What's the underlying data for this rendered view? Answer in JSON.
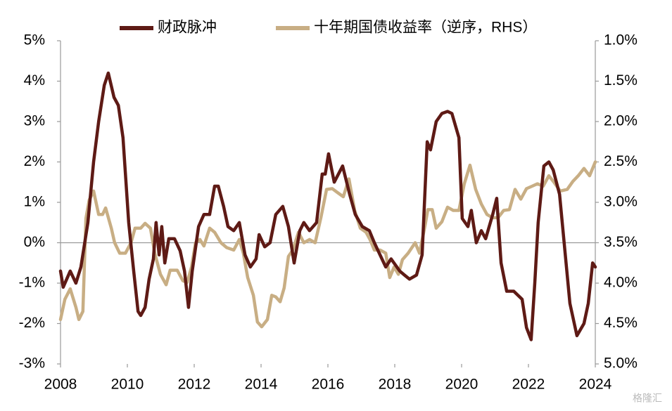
{
  "chart_data": {
    "type": "line",
    "xlim": [
      2008,
      2024
    ],
    "xticks": [
      2008,
      2010,
      2012,
      2014,
      2016,
      2018,
      2020,
      2022,
      2024
    ],
    "ylim": [
      -3,
      5
    ],
    "yticks": [
      {
        "value": -3,
        "label": "-3%"
      },
      {
        "value": -2,
        "label": "-2%"
      },
      {
        "value": -1,
        "label": "-1%"
      },
      {
        "value": 0,
        "label": "0%"
      },
      {
        "value": 1,
        "label": "1%"
      },
      {
        "value": 2,
        "label": "2%"
      },
      {
        "value": 3,
        "label": "3%"
      },
      {
        "value": 4,
        "label": "4%"
      },
      {
        "value": 5,
        "label": "5%"
      }
    ],
    "y2lim": [
      5.0,
      1.0
    ],
    "y2ticks": [
      {
        "value": 1.0,
        "label": "1.0%"
      },
      {
        "value": 1.5,
        "label": "1.5%"
      },
      {
        "value": 2.0,
        "label": "2.0%"
      },
      {
        "value": 2.5,
        "label": "2.5%"
      },
      {
        "value": 3.0,
        "label": "3.0%"
      },
      {
        "value": 3.5,
        "label": "3.5%"
      },
      {
        "value": 4.0,
        "label": "4.0%"
      },
      {
        "value": 4.5,
        "label": "4.5%"
      },
      {
        "value": 5.0,
        "label": "5.0%"
      }
    ],
    "y2_inverted": true,
    "zero_line": true,
    "legend": "top",
    "watermark": "格隆汇",
    "series": [
      {
        "name": "财政脉冲",
        "color": "#5e1a15",
        "x": [
          2008.0,
          2008.08,
          2008.29,
          2008.46,
          2008.61,
          2008.82,
          2008.99,
          2009.14,
          2009.31,
          2009.43,
          2009.6,
          2009.73,
          2009.87,
          2010.04,
          2010.19,
          2010.32,
          2010.4,
          2010.53,
          2010.65,
          2010.78,
          2010.86,
          2010.95,
          2011.03,
          2011.12,
          2011.24,
          2011.41,
          2011.58,
          2011.71,
          2011.83,
          2011.94,
          2012.13,
          2012.29,
          2012.46,
          2012.61,
          2012.72,
          2012.88,
          2013.01,
          2013.18,
          2013.35,
          2013.52,
          2013.68,
          2013.85,
          2013.94,
          2014.11,
          2014.27,
          2014.44,
          2014.65,
          2014.82,
          2014.99,
          2015.16,
          2015.28,
          2015.45,
          2015.66,
          2015.83,
          2015.92,
          2016.02,
          2016.19,
          2016.44,
          2016.65,
          2016.82,
          2017.03,
          2017.24,
          2017.39,
          2017.56,
          2017.73,
          2017.89,
          2018.15,
          2018.29,
          2018.44,
          2018.65,
          2018.82,
          2018.97,
          2019.07,
          2019.24,
          2019.41,
          2019.58,
          2019.71,
          2019.92,
          2020.02,
          2020.19,
          2020.29,
          2020.44,
          2020.59,
          2020.72,
          2020.93,
          2021.05,
          2021.18,
          2021.35,
          2021.56,
          2021.81,
          2021.94,
          2022.08,
          2022.19,
          2022.29,
          2022.46,
          2022.61,
          2022.74,
          2022.93,
          2023.24,
          2023.45,
          2023.66,
          2023.79,
          2023.92,
          2024.0
        ],
        "values": [
          -0.7,
          -1.1,
          -0.7,
          -1.0,
          -0.6,
          0.5,
          2.0,
          3.0,
          3.9,
          4.2,
          3.6,
          3.4,
          2.6,
          0.5,
          -0.7,
          -1.7,
          -1.8,
          -1.6,
          -0.9,
          -0.4,
          0.5,
          -0.3,
          0.4,
          -0.5,
          0.1,
          0.1,
          -0.2,
          -0.7,
          -1.6,
          -0.7,
          0.4,
          0.7,
          0.7,
          1.4,
          1.4,
          0.9,
          0.4,
          0.3,
          0.5,
          -0.3,
          -0.6,
          -0.4,
          0.2,
          -0.1,
          0.0,
          0.7,
          0.9,
          0.4,
          -0.5,
          0.3,
          0.5,
          0.3,
          0.5,
          1.7,
          1.7,
          2.2,
          1.5,
          1.9,
          1.2,
          0.7,
          0.4,
          0.3,
          0.0,
          -0.3,
          -0.6,
          -0.4,
          -0.7,
          -0.8,
          -0.9,
          -0.8,
          -0.3,
          2.5,
          2.3,
          3.0,
          3.2,
          3.25,
          3.2,
          2.6,
          0.6,
          0.4,
          0.8,
          0.0,
          0.3,
          0.1,
          0.7,
          1.1,
          -0.5,
          -1.2,
          -1.2,
          -1.4,
          -2.1,
          -2.4,
          -1.0,
          0.5,
          1.9,
          2.0,
          1.8,
          1.2,
          -1.5,
          -2.3,
          -2.0,
          -1.5,
          -0.5,
          -0.6
        ]
      },
      {
        "name": "十年期国债收益率（逆序，RHS）",
        "color": "#c8ae84",
        "axis": "y2",
        "x": [
          2008.0,
          2008.13,
          2008.29,
          2008.46,
          2008.55,
          2008.67,
          2008.76,
          2008.86,
          2008.99,
          2009.14,
          2009.26,
          2009.35,
          2009.52,
          2009.62,
          2009.77,
          2009.94,
          2010.11,
          2010.23,
          2010.4,
          2010.53,
          2010.69,
          2010.82,
          2010.99,
          2011.16,
          2011.28,
          2011.49,
          2011.66,
          2011.79,
          2011.92,
          2012.04,
          2012.17,
          2012.29,
          2012.46,
          2012.61,
          2012.8,
          2012.97,
          2013.18,
          2013.35,
          2013.47,
          2013.6,
          2013.77,
          2013.89,
          2014.02,
          2014.19,
          2014.32,
          2014.44,
          2014.57,
          2014.69,
          2014.82,
          2014.95,
          2015.12,
          2015.28,
          2015.45,
          2015.62,
          2015.79,
          2015.96,
          2016.13,
          2016.29,
          2016.46,
          2016.63,
          2016.8,
          2016.97,
          2017.14,
          2017.26,
          2017.39,
          2017.56,
          2017.73,
          2017.85,
          2017.98,
          2018.11,
          2018.23,
          2018.4,
          2018.61,
          2018.74,
          2018.91,
          2018.99,
          2019.12,
          2019.24,
          2019.41,
          2019.58,
          2019.75,
          2019.92,
          2020.08,
          2020.25,
          2020.42,
          2020.59,
          2020.76,
          2020.93,
          2021.09,
          2021.26,
          2021.43,
          2021.6,
          2021.77,
          2021.94,
          2022.11,
          2022.27,
          2022.44,
          2022.61,
          2022.78,
          2022.95,
          2023.16,
          2023.33,
          2023.49,
          2023.66,
          2023.83,
          2024.0
        ],
        "values": [
          4.45,
          4.2,
          4.07,
          4.3,
          4.45,
          4.35,
          3.2,
          2.97,
          2.86,
          3.15,
          3.15,
          3.07,
          3.32,
          3.5,
          3.63,
          3.63,
          3.5,
          3.32,
          3.32,
          3.26,
          3.32,
          3.63,
          3.89,
          4.02,
          3.84,
          3.84,
          3.97,
          3.99,
          3.8,
          3.5,
          3.46,
          3.54,
          3.32,
          3.37,
          3.5,
          3.56,
          3.59,
          3.46,
          3.63,
          3.93,
          4.15,
          4.48,
          4.54,
          4.45,
          4.15,
          4.17,
          4.23,
          4.06,
          3.67,
          3.59,
          3.37,
          3.5,
          3.46,
          3.5,
          3.19,
          2.84,
          2.83,
          2.88,
          2.93,
          2.71,
          3.1,
          3.32,
          3.37,
          3.46,
          3.59,
          3.59,
          3.63,
          3.93,
          3.8,
          3.89,
          3.71,
          3.63,
          3.5,
          3.63,
          3.28,
          3.09,
          3.09,
          3.32,
          3.24,
          3.06,
          3.1,
          3.1,
          2.77,
          2.54,
          2.84,
          3.02,
          3.15,
          3.19,
          3.19,
          3.1,
          3.09,
          2.84,
          2.96,
          2.83,
          2.8,
          2.77,
          2.8,
          2.67,
          2.76,
          2.86,
          2.84,
          2.74,
          2.67,
          2.58,
          2.67,
          2.5
        ]
      }
    ]
  }
}
